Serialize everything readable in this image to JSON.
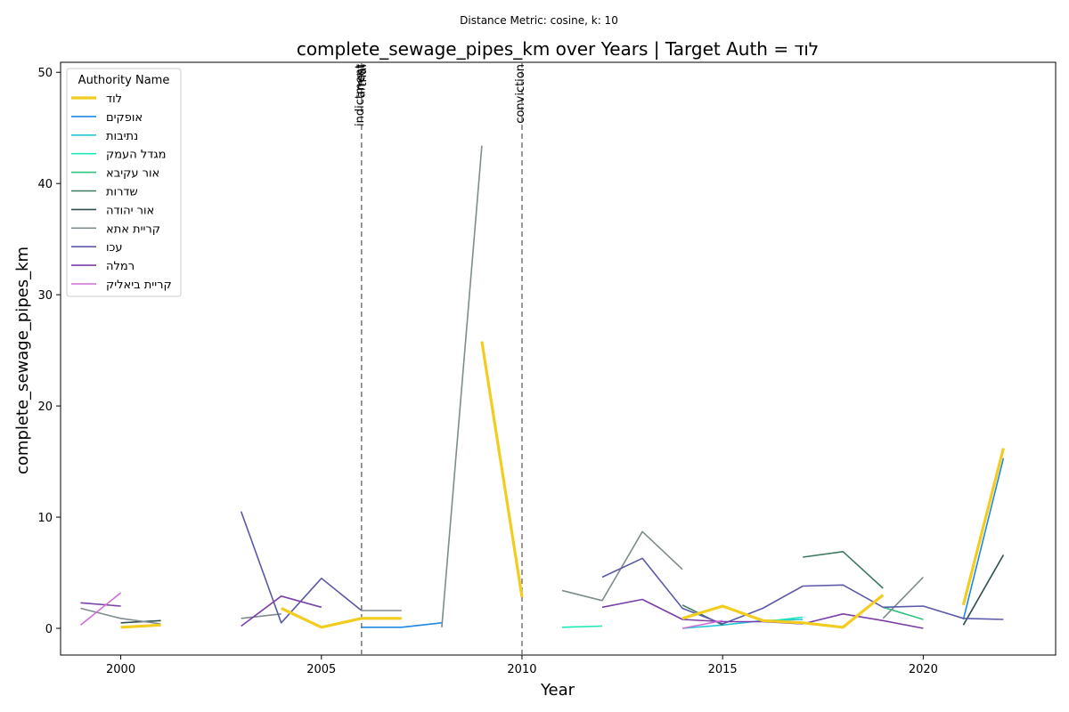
{
  "chart_data": {
    "type": "line",
    "suptitle": "Distance Metric: cosine, k: 10",
    "title": "complete_sewage_pipes_km over Years | Target Auth = לוד",
    "xlabel": "Year",
    "ylabel": "complete_sewage_pipes_km",
    "xlim": [
      1998.5,
      2023.3
    ],
    "ylim": [
      -2.4,
      50.9
    ],
    "xticks": [
      2000,
      2005,
      2010,
      2015,
      2020
    ],
    "yticks": [
      0,
      10,
      20,
      30,
      40,
      50
    ],
    "grid": false,
    "legend": {
      "title": "Authority Name",
      "placement": "top-left"
    },
    "events": [
      {
        "x": 2006,
        "labels": [
          "indictment",
          "arrest",
          "trial"
        ]
      },
      {
        "x": 2010,
        "labels": [
          "conviction"
        ]
      }
    ],
    "series": [
      {
        "name": "לוד",
        "color": "#f2cd1f",
        "highlight": true,
        "points": [
          [
            2000,
            0.1
          ],
          [
            2001,
            0.3
          ],
          [
            null,
            null
          ],
          [
            2004,
            1.8
          ],
          [
            2005,
            0.1
          ],
          [
            2006,
            0.9
          ],
          [
            2007,
            0.9
          ],
          [
            null,
            null
          ],
          [
            2009,
            25.8
          ],
          [
            2010,
            2.8
          ],
          [
            null,
            null
          ],
          [
            2014,
            0.9
          ],
          [
            2015,
            2.0
          ],
          [
            2016,
            0.7
          ],
          [
            2017,
            0.5
          ],
          [
            2018,
            0.1
          ],
          [
            2019,
            3.0
          ],
          [
            null,
            null
          ],
          [
            2021,
            2.1
          ],
          [
            2022,
            16.2
          ]
        ]
      },
      {
        "name": "אופקים",
        "color": "#1e88e5",
        "points": [
          [
            2006,
            0.1
          ],
          [
            2007,
            0.1
          ],
          [
            2008,
            0.5
          ],
          [
            null,
            null
          ],
          [
            2021,
            0.8
          ],
          [
            2022,
            15.3
          ]
        ]
      },
      {
        "name": "נתיבות",
        "color": "#26c6da",
        "points": [
          [
            2014,
            0.0
          ],
          [
            2015,
            0.3
          ],
          [
            2016,
            0.7
          ],
          [
            2017,
            0.8
          ]
        ]
      },
      {
        "name": "מגדל העמק",
        "color": "#1de9b6",
        "points": [
          [
            2011,
            0.1
          ],
          [
            2012,
            0.2
          ],
          [
            null,
            null
          ],
          [
            2016,
            0.6
          ],
          [
            2017,
            1.0
          ]
        ]
      },
      {
        "name": "אור עקיבא",
        "color": "#2ec27e",
        "points": [
          [
            2019,
            1.9
          ],
          [
            2020,
            0.8
          ]
        ]
      },
      {
        "name": "שדרות",
        "color": "#3d7a60",
        "points": [
          [
            2014,
            2.1
          ],
          [
            2015,
            0.3
          ],
          [
            null,
            null
          ],
          [
            2017,
            6.4
          ],
          [
            2018,
            6.9
          ],
          [
            2019,
            3.6
          ]
        ]
      },
      {
        "name": "אור יהודה",
        "color": "#2f4f4f",
        "points": [
          [
            2000,
            0.5
          ],
          [
            2001,
            0.7
          ],
          [
            null,
            null
          ],
          [
            2021,
            0.3
          ],
          [
            2022,
            6.6
          ]
        ]
      },
      {
        "name": "קריית אתא",
        "color": "#7f8c8d",
        "points": [
          [
            1999,
            1.8
          ],
          [
            2000,
            0.9
          ],
          [
            2001,
            0.4
          ],
          [
            null,
            null
          ],
          [
            2003,
            0.9
          ],
          [
            2004,
            1.3
          ],
          [
            null,
            null
          ],
          [
            2006,
            1.6
          ],
          [
            2007,
            1.6
          ],
          [
            null,
            null
          ],
          [
            2008,
            0.1
          ],
          [
            2009,
            43.4
          ],
          [
            null,
            null
          ],
          [
            2011,
            3.4
          ],
          [
            2012,
            2.5
          ],
          [
            2013,
            8.7
          ],
          [
            2014,
            5.3
          ],
          [
            null,
            null
          ],
          [
            2019,
            0.9
          ],
          [
            2020,
            4.6
          ]
        ]
      },
      {
        "name": "עכו",
        "color": "#5c5aa8",
        "points": [
          [
            2003,
            10.5
          ],
          [
            2004,
            0.5
          ],
          [
            2005,
            4.5
          ],
          [
            2006,
            1.6
          ],
          [
            null,
            null
          ],
          [
            2012,
            4.6
          ],
          [
            2013,
            6.3
          ],
          [
            2014,
            1.8
          ],
          [
            2015,
            0.4
          ],
          [
            2016,
            1.8
          ],
          [
            2017,
            3.8
          ],
          [
            2018,
            3.9
          ],
          [
            2019,
            1.9
          ],
          [
            2020,
            2.0
          ],
          [
            2021,
            0.9
          ],
          [
            2022,
            0.8
          ]
        ]
      },
      {
        "name": "רמלה",
        "color": "#7b3fa8",
        "points": [
          [
            1999,
            2.3
          ],
          [
            2000,
            2.0
          ],
          [
            null,
            null
          ],
          [
            2003,
            0.2
          ],
          [
            2004,
            2.9
          ],
          [
            2005,
            1.9
          ],
          [
            null,
            null
          ],
          [
            2012,
            1.9
          ],
          [
            2013,
            2.6
          ],
          [
            2014,
            0.8
          ],
          [
            2015,
            0.6
          ],
          [
            2016,
            0.6
          ],
          [
            2017,
            0.4
          ],
          [
            2018,
            1.3
          ],
          [
            2019,
            0.7
          ],
          [
            2020,
            0.0
          ]
        ]
      },
      {
        "name": "קריית ביאליק",
        "color": "#cf6fd6",
        "points": [
          [
            1999,
            0.3
          ],
          [
            2000,
            3.2
          ],
          [
            null,
            null
          ],
          [
            2014,
            0.0
          ],
          [
            2015,
            0.7
          ]
        ]
      }
    ]
  }
}
